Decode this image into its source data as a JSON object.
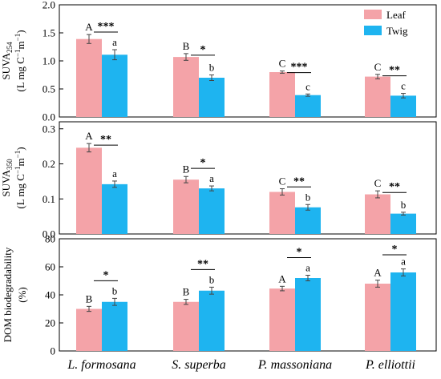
{
  "chart_data": [
    {
      "type": "bar",
      "categories": [
        "L. formosana",
        "S. superba",
        "P. massoniana",
        "P. elliottii"
      ],
      "series": [
        {
          "name": "Leaf",
          "color": "#F4A3A8",
          "values": [
            1.39,
            1.07,
            0.8,
            0.72
          ],
          "errors": [
            0.08,
            0.06,
            0.02,
            0.04
          ],
          "labels": [
            "A",
            "B",
            "C",
            "C"
          ]
        },
        {
          "name": "Twig",
          "color": "#1EB4F0",
          "values": [
            1.11,
            0.7,
            0.39,
            0.38
          ],
          "errors": [
            0.09,
            0.05,
            0.02,
            0.04
          ],
          "labels": [
            "a",
            "b",
            "c",
            "c"
          ]
        }
      ],
      "significance": [
        "***",
        "*",
        "***",
        "**"
      ],
      "ylabel_main": "SUVA",
      "ylabel_sub": "254",
      "ylabel_unit": [
        "(L mg C",
        "−1",
        "m",
        "−1",
        ")"
      ],
      "ylim": [
        0,
        2.0
      ],
      "yticks": [
        "0.0",
        "0.5",
        "1.0",
        "1.5",
        "2.0"
      ],
      "legend": "top-right"
    },
    {
      "type": "bar",
      "categories": [
        "L. formosana",
        "S. superba",
        "P. massoniana",
        "P. elliottii"
      ],
      "series": [
        {
          "name": "Leaf",
          "color": "#F4A3A8",
          "values": [
            0.246,
            0.155,
            0.12,
            0.113
          ],
          "errors": [
            0.012,
            0.009,
            0.009,
            0.01
          ],
          "labels": [
            "A",
            "B",
            "C",
            "C"
          ]
        },
        {
          "name": "Twig",
          "color": "#1EB4F0",
          "values": [
            0.142,
            0.13,
            0.076,
            0.058
          ],
          "errors": [
            0.009,
            0.007,
            0.008,
            0.004
          ],
          "labels": [
            "a",
            "a",
            "b",
            "b"
          ]
        }
      ],
      "significance": [
        "**",
        "*",
        "**",
        "**"
      ],
      "ylabel_main": "SUVA",
      "ylabel_sub": "350",
      "ylabel_unit": [
        "(L mg C",
        "−1",
        "m",
        "−1",
        ")"
      ],
      "ylim": [
        0,
        0.32
      ],
      "yticks": [
        "0.0",
        "0.1",
        "0.2",
        "0.3"
      ]
    },
    {
      "type": "bar",
      "categories": [
        "L. formosana",
        "S. superba",
        "P. massoniana",
        "P. elliottii"
      ],
      "series": [
        {
          "name": "Leaf",
          "color": "#F4A3A8",
          "values": [
            30.0,
            35.0,
            44.5,
            48.0
          ],
          "errors": [
            1.8,
            1.8,
            1.6,
            2.5
          ],
          "labels": [
            "B",
            "B",
            "A",
            "A"
          ]
        },
        {
          "name": "Twig",
          "color": "#1EB4F0",
          "values": [
            35.0,
            43.0,
            52.0,
            56.0
          ],
          "errors": [
            2.5,
            2.5,
            2.0,
            2.5
          ],
          "labels": [
            "b",
            "b",
            "a",
            "a"
          ]
        }
      ],
      "significance": [
        "*",
        "**",
        "*",
        "*"
      ],
      "ylabel_main": "DOM biodegradability",
      "ylabel_unit_plain": "(%)",
      "ylim": [
        0,
        80
      ],
      "yticks": [
        "0",
        "20",
        "40",
        "60",
        "80"
      ]
    }
  ]
}
